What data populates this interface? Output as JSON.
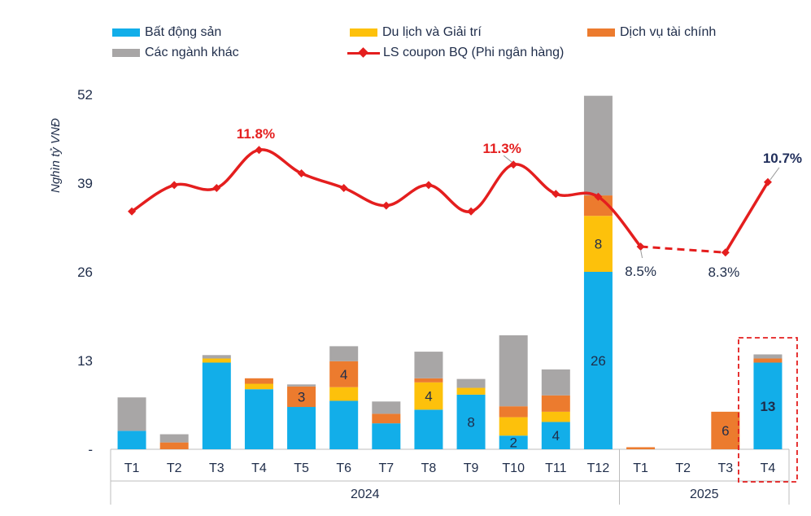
{
  "legend": {
    "items": [
      {
        "label": "Bất động sản",
        "color": "#12aee9"
      },
      {
        "label": "Du lịch và Giải trí",
        "color": "#fdc10b"
      },
      {
        "label": "Dịch vụ tài chính",
        "color": "#ec7b2e"
      },
      {
        "label": "Các ngành khác",
        "color": "#a8a6a6"
      },
      {
        "label": "LS coupon BQ (Phi ngân hàng)",
        "color": "#e41e1e"
      }
    ]
  },
  "chart_data": {
    "type": "bar",
    "stacked": true,
    "ylabel": "Nghìn tỷ VNĐ",
    "ylim": [
      0,
      52
    ],
    "yticks": [
      0,
      13,
      26,
      39,
      52
    ],
    "ytick_labels": [
      "-",
      "13",
      "26",
      "39",
      "52"
    ],
    "categories": [
      "T1",
      "T2",
      "T3",
      "T4",
      "T5",
      "T6",
      "T7",
      "T8",
      "T9",
      "T10",
      "T11",
      "T12",
      "T1",
      "T2",
      "T3",
      "T4"
    ],
    "year_groups": [
      {
        "label": "2024",
        "start": 0,
        "end": 11
      },
      {
        "label": "2025",
        "start": 12,
        "end": 15
      }
    ],
    "series": [
      {
        "name": "Bất động sản",
        "color": "#12aee9",
        "values": [
          2.7,
          0,
          12.7,
          8.8,
          6.2,
          7.1,
          3.8,
          5.8,
          8,
          2,
          4,
          26,
          0,
          0,
          0,
          12.7
        ]
      },
      {
        "name": "Du lịch và Giải trí",
        "color": "#fdc10b",
        "values": [
          0,
          0,
          0.6,
          0.8,
          0,
          2,
          0,
          4,
          1,
          2.7,
          1.5,
          8.2,
          0,
          0,
          0,
          0
        ]
      },
      {
        "name": "Dịch vụ tài chính",
        "color": "#ec7b2e",
        "values": [
          0,
          1,
          0,
          0.8,
          3,
          3.8,
          1.4,
          0.6,
          0,
          1.6,
          2.4,
          3,
          0.3,
          0,
          5.5,
          0.6
        ]
      },
      {
        "name": "Các ngành khác",
        "color": "#a8a6a6",
        "values": [
          4.9,
          1.2,
          0.5,
          0,
          0.3,
          2.2,
          1.8,
          3.9,
          1.3,
          10.4,
          3.8,
          14.6,
          0,
          0,
          0,
          0.6
        ]
      }
    ],
    "bar_labels": [
      {
        "index": 4,
        "series": "Dịch vụ tài chính",
        "text": "3"
      },
      {
        "index": 5,
        "series": "Dịch vụ tài chính",
        "text": "4"
      },
      {
        "index": 7,
        "series": "Du lịch và Giải trí",
        "text": "4"
      },
      {
        "index": 8,
        "series": "Bất động sản",
        "text": "8"
      },
      {
        "index": 9,
        "series": "Bất động sản",
        "text": "2"
      },
      {
        "index": 10,
        "series": "Bất động sản",
        "text": "4"
      },
      {
        "index": 11,
        "series": "Bất động sản",
        "text": "26"
      },
      {
        "index": 11,
        "series": "Du lịch và Giải trí",
        "text": "8"
      },
      {
        "index": 14,
        "series": "Dịch vụ tài chính",
        "text": "6"
      },
      {
        "index": 15,
        "series": "Bất động sản",
        "text": "13"
      }
    ],
    "line": {
      "name": "LS coupon BQ (Phi ngân hàng)",
      "color": "#e41e1e",
      "unit": "%",
      "values": [
        9.7,
        10.6,
        10.5,
        11.8,
        11.0,
        10.5,
        9.9,
        10.6,
        9.7,
        11.3,
        10.3,
        10.2,
        8.5,
        null,
        8.3,
        10.7
      ],
      "dashed_from": 12,
      "dashed_to": 14,
      "labels": [
        {
          "index": 3,
          "text": "11.8%"
        },
        {
          "index": 9,
          "text": "11.3%"
        },
        {
          "index": 12,
          "text": "8.5%"
        },
        {
          "index": 14,
          "text": "8.3%"
        },
        {
          "index": 15,
          "text": "10.7%"
        }
      ]
    },
    "highlight_index": 15
  }
}
